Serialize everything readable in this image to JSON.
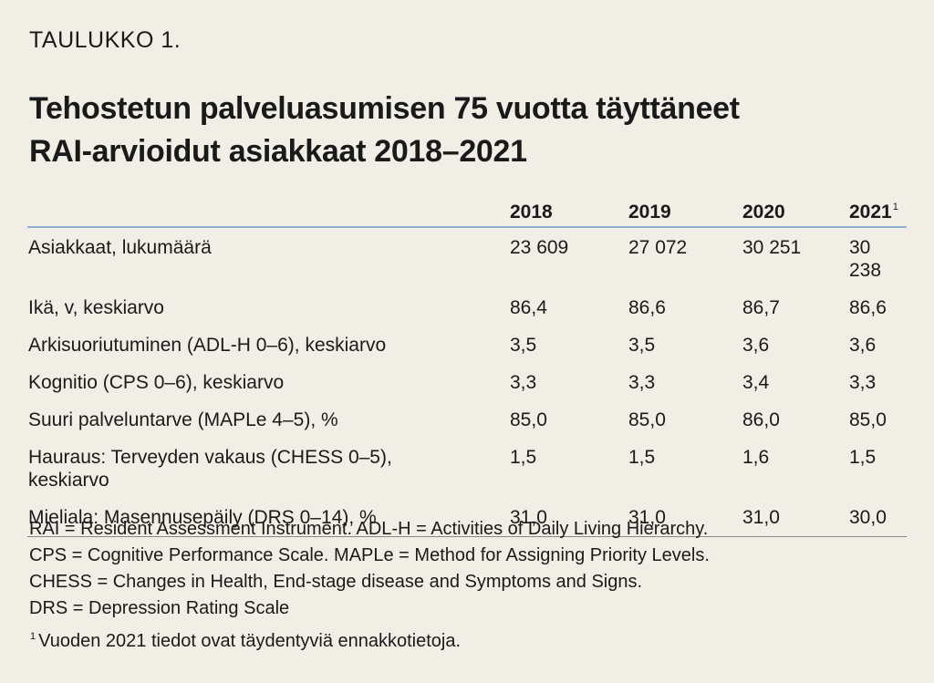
{
  "label": "TAULUKKO 1.",
  "title": [
    "Tehostetun palveluasumisen 75 vuotta täyttäneet",
    "RAI-arvioidut asiakkaat 2018–2021"
  ],
  "table": {
    "headers": [
      "",
      "2018",
      "2019",
      "2020",
      "2021"
    ],
    "header_sup": "1",
    "rows": [
      {
        "label": "Asiakkaat, lukumäärä",
        "values": [
          "23 609",
          "27 072",
          "30 251",
          "30 238"
        ]
      },
      {
        "label": "Ikä, v, keskiarvo",
        "values": [
          "86,4",
          "86,6",
          "86,7",
          "86,6"
        ]
      },
      {
        "label": "Arkisuoriutuminen (ADL-H 0–6), keskiarvo",
        "values": [
          "3,5",
          "3,5",
          "3,6",
          "3,6"
        ]
      },
      {
        "label": "Kognitio (CPS 0–6), keskiarvo",
        "values": [
          "3,3",
          "3,3",
          "3,4",
          "3,3"
        ]
      },
      {
        "label": "Suuri palveluntarve (MAPLe 4–5), %",
        "values": [
          "85,0",
          "85,0",
          "86,0",
          "85,0"
        ]
      },
      {
        "label": "Hauraus: Terveyden vakaus (CHESS 0–5), keskiarvo",
        "values": [
          "1,5",
          "1,5",
          "1,6",
          "1,5"
        ]
      },
      {
        "label": "Mieliala: Masennusepäily (DRS 0–14), %",
        "values": [
          "31,0",
          "31,0",
          "31,0",
          "30,0"
        ]
      }
    ]
  },
  "notes": [
    "RAI = Resident Assessment Instrument. ADL-H = Activities of Daily Living Hierarchy.",
    "CPS = Cognitive Performance Scale. MAPLe = Method for Assigning Priority Levels.",
    "CHESS = Changes in Health, End-stage disease and Symptoms and Signs.",
    "DRS = Depression Rating Scale"
  ],
  "footnote": {
    "marker": "1",
    "text": "Vuoden 2021 tiedot ovat täydentyviä ennakkotietoja."
  }
}
